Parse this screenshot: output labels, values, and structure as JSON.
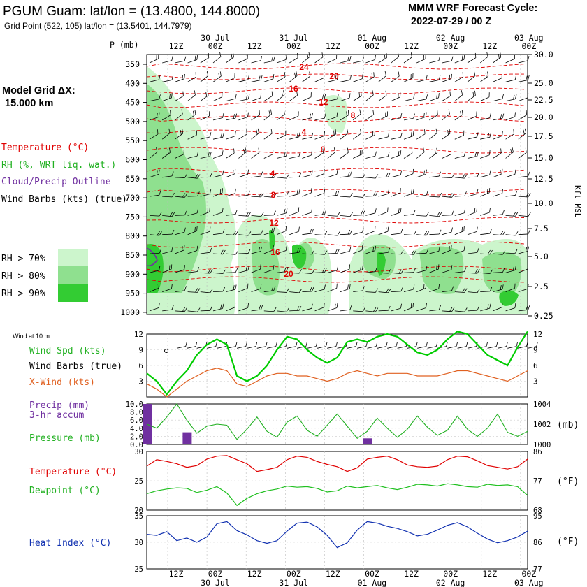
{
  "header": {
    "title": "PGUM Guam:  lat/lon = (13.4800, 144.8000)",
    "subtitle": "Grid Point (522, 105) lat/lon = (13.5401, 144.7979)",
    "forecast_label": "MMM WRF Forecast Cycle:",
    "forecast_cycle": "2022-07-29 / 00  Z"
  },
  "time_axis": {
    "days_top": [
      "30 Jul",
      "31 Jul",
      "01 Aug",
      "02 Aug",
      "03 Aug"
    ],
    "days_bottom": [
      "30 Jul",
      "31 Jul",
      "01 Aug",
      "02 Aug",
      "03 Aug"
    ],
    "ticks_top": [
      "12Z",
      "00Z",
      "12Z",
      "00Z",
      "12Z",
      "00Z",
      "12Z",
      "00Z",
      "12Z",
      "00Z"
    ],
    "ticks_bottom": [
      "12Z",
      "00Z",
      "12Z",
      "00Z",
      "12Z",
      "00Z",
      "12Z",
      "00Z",
      "12Z",
      "00Z"
    ]
  },
  "profile": {
    "p_label": "P (mb)",
    "right_label": "Kft MSL",
    "pressure_ticks": [
      "350",
      "400",
      "450",
      "500",
      "550",
      "600",
      "650",
      "700",
      "750",
      "800",
      "850",
      "900",
      "950",
      "1000"
    ],
    "kft_ticks": [
      "30.0",
      "25.0",
      "22.5",
      "20.0",
      "17.5",
      "15.0",
      "12.5",
      "10.0",
      "7.5",
      "5.0",
      "2.5",
      "0.25"
    ],
    "model_grid_label": "Model Grid ΔX:",
    "model_grid_value": "15.000 km",
    "legend_temperature": "Temperature (°C)",
    "legend_rh": "RH (%, WRT liq. wat.)",
    "legend_cloud": "Cloud/Precip Outline",
    "legend_wind": "Wind Barbs (kts) (true)",
    "rh_thresholds": [
      "RH > 70%",
      "RH > 80%",
      "RH > 90%"
    ],
    "temp_contour_labels": [
      "24",
      "20",
      "16",
      "12",
      "8",
      "4",
      "0",
      "4",
      "8",
      "12",
      "16",
      "20"
    ],
    "colors": {
      "temperature": "#e00000",
      "rh70": "#ccf5cc",
      "rh80": "#8fe08f",
      "rh90": "#33cc33",
      "cloud": "#7030a0"
    }
  },
  "panels": {
    "wind": {
      "corner_label": "Wind at 10 m",
      "label_speed": "Wind Spd (kts)",
      "label_barbs": "Wind Barbs (true)",
      "label_xwind": "X-Wind (kts)",
      "ticks": [
        "12",
        "9",
        "6",
        "3"
      ]
    },
    "precip": {
      "label_precip": "Precip (mm)",
      "label_accum": "3-hr accum",
      "label_pressure": "Pressure (mb)",
      "left_ticks": [
        "10.0",
        "8.0",
        "6.0",
        "4.0",
        "2.0",
        "0.0"
      ],
      "right_ticks": [
        "1004",
        "1002",
        "1000"
      ],
      "right_unit": "(mb)"
    },
    "temp": {
      "label_temp": "Temperature (°C)",
      "label_dew": "Dewpoint (°C)",
      "left_ticks": [
        "30",
        "25",
        "20"
      ],
      "right_ticks": [
        "86",
        "77",
        "68"
      ],
      "right_unit": "(°F)"
    },
    "heat": {
      "label_heat": "Heat Index (°C)",
      "left_ticks": [
        "35",
        "30",
        "25"
      ],
      "right_ticks": [
        "95",
        "86",
        "77"
      ],
      "right_unit": "(°F)"
    }
  },
  "chart_data": [
    {
      "type": "line",
      "title": "Wind at 10 m",
      "x": [
        "29/06Z",
        "29/09Z",
        "29/12Z",
        "29/15Z",
        "29/18Z",
        "29/21Z",
        "30/00Z",
        "30/03Z",
        "30/06Z",
        "30/09Z",
        "30/12Z",
        "30/15Z",
        "30/18Z",
        "30/21Z",
        "31/00Z",
        "31/03Z",
        "31/06Z",
        "31/09Z",
        "31/12Z",
        "31/15Z",
        "31/18Z",
        "31/21Z",
        "01/00Z",
        "01/03Z",
        "01/06Z",
        "01/09Z",
        "01/12Z",
        "01/15Z",
        "01/18Z",
        "01/21Z",
        "02/00Z",
        "02/03Z",
        "02/06Z",
        "02/09Z",
        "02/12Z",
        "02/15Z",
        "02/18Z",
        "02/21Z",
        "03/00Z"
      ],
      "series": [
        {
          "name": "Wind Spd (kts)",
          "color": "#00cc00",
          "values": [
            4.5,
            3.0,
            0.5,
            3.0,
            5.0,
            8.0,
            10.0,
            11.0,
            10.0,
            4.0,
            3.0,
            4.0,
            6.0,
            9.0,
            11.5,
            11.0,
            9.0,
            7.5,
            6.5,
            7.5,
            10.5,
            11.0,
            10.5,
            11.5,
            12.0,
            11.5,
            10.0,
            8.5,
            8.0,
            9.0,
            11.0,
            12.5,
            12.0,
            10.0,
            8.0,
            7.0,
            6.0,
            9.5,
            12.5
          ]
        },
        {
          "name": "X-Wind (kts)",
          "color": "#e06020",
          "values": [
            2.5,
            1.5,
            0.0,
            1.5,
            3.0,
            4.0,
            5.0,
            5.5,
            5.0,
            2.5,
            2.0,
            3.0,
            4.0,
            4.5,
            4.5,
            4.0,
            4.0,
            3.5,
            3.0,
            3.5,
            4.5,
            5.0,
            4.5,
            4.0,
            4.5,
            4.5,
            4.5,
            4.0,
            4.0,
            4.0,
            4.5,
            5.0,
            5.0,
            4.5,
            4.0,
            3.5,
            3.0,
            4.0,
            5.0
          ]
        }
      ],
      "ylim": [
        0,
        12
      ]
    },
    {
      "type": "bar",
      "title": "Precip (mm) 3-hr accum / Pressure (mb)",
      "x": [
        "29/06Z",
        "29/09Z",
        "29/12Z",
        "29/15Z",
        "29/18Z",
        "29/21Z",
        "30/00Z",
        "30/03Z",
        "30/06Z",
        "30/09Z",
        "30/12Z",
        "30/15Z",
        "30/18Z",
        "30/21Z",
        "31/00Z",
        "31/03Z",
        "31/06Z",
        "31/09Z",
        "31/12Z",
        "31/15Z",
        "31/18Z",
        "31/21Z",
        "01/00Z",
        "01/03Z",
        "01/06Z",
        "01/09Z",
        "01/12Z",
        "01/15Z",
        "01/18Z",
        "01/21Z",
        "02/00Z",
        "02/03Z",
        "02/06Z",
        "02/09Z",
        "02/12Z",
        "02/15Z",
        "02/18Z",
        "02/21Z",
        "03/00Z"
      ],
      "series": [
        {
          "name": "Precip (mm)",
          "color": "#7030a0",
          "values": [
            10.0,
            0,
            0,
            0,
            3.0,
            0,
            0,
            0,
            0,
            0,
            0,
            0,
            0,
            0,
            0,
            0,
            0,
            0,
            0,
            0,
            0,
            0,
            1.5,
            0,
            0,
            0,
            0,
            0,
            0,
            0,
            0,
            0,
            0,
            0,
            0,
            0,
            0,
            0,
            0
          ]
        },
        {
          "name": "Pressure (mb)",
          "color": "#20b020",
          "values": [
            1002.0,
            1001.6,
            1002.7,
            1004.0,
            1002.4,
            1001.1,
            1001.8,
            1002.0,
            1001.9,
            1000.5,
            1001.5,
            1002.7,
            1001.3,
            1000.7,
            1002.2,
            1002.8,
            1001.4,
            1000.8,
            1001.9,
            1003.0,
            1001.8,
            1000.6,
            1001.3,
            1002.6,
            1001.6,
            1000.7,
            1001.5,
            1002.8,
            1001.7,
            1000.9,
            1001.4,
            1002.8,
            1001.5,
            1000.8,
            1001.6,
            1003.0,
            1001.2,
            1000.8,
            1001.3
          ]
        }
      ],
      "ylim_left": [
        0,
        10
      ],
      "ylim_right": [
        1000,
        1004
      ]
    },
    {
      "type": "line",
      "title": "Temperature / Dewpoint (°C)",
      "x": [
        "29/06Z",
        "29/09Z",
        "29/12Z",
        "29/15Z",
        "29/18Z",
        "29/21Z",
        "30/00Z",
        "30/03Z",
        "30/06Z",
        "30/09Z",
        "30/12Z",
        "30/15Z",
        "30/18Z",
        "30/21Z",
        "31/00Z",
        "31/03Z",
        "31/06Z",
        "31/09Z",
        "31/12Z",
        "31/15Z",
        "31/18Z",
        "31/21Z",
        "01/00Z",
        "01/03Z",
        "01/06Z",
        "01/09Z",
        "01/12Z",
        "01/15Z",
        "01/18Z",
        "01/21Z",
        "02/00Z",
        "02/03Z",
        "02/06Z",
        "02/09Z",
        "02/12Z",
        "02/15Z",
        "02/18Z",
        "02/21Z",
        "03/00Z"
      ],
      "series": [
        {
          "name": "Temperature (°C)",
          "color": "#e00000",
          "values": [
            27.5,
            28.6,
            28.3,
            27.9,
            27.3,
            27.6,
            28.7,
            29.2,
            29.3,
            28.6,
            27.9,
            26.6,
            26.9,
            27.3,
            28.6,
            29.2,
            29.0,
            28.3,
            27.8,
            27.4,
            26.6,
            27.2,
            28.7,
            29.0,
            29.2,
            28.6,
            27.7,
            27.4,
            27.3,
            27.5,
            28.6,
            29.2,
            29.1,
            28.4,
            27.6,
            27.3,
            27.0,
            27.4,
            28.7
          ]
        },
        {
          "name": "Dewpoint (°C)",
          "color": "#20c020",
          "values": [
            22.8,
            23.3,
            23.6,
            23.8,
            23.7,
            23.0,
            23.4,
            24.0,
            22.9,
            20.8,
            22.0,
            22.8,
            23.3,
            23.6,
            24.1,
            23.9,
            24.0,
            23.7,
            23.1,
            23.3,
            24.1,
            23.8,
            24.0,
            24.2,
            23.8,
            23.5,
            23.9,
            24.4,
            24.3,
            24.1,
            24.5,
            24.3,
            24.0,
            23.9,
            24.4,
            24.2,
            24.3,
            24.0,
            22.5
          ]
        }
      ],
      "ylim": [
        20,
        30
      ]
    },
    {
      "type": "line",
      "title": "Heat Index (°C)",
      "x": [
        "29/06Z",
        "29/09Z",
        "29/12Z",
        "29/15Z",
        "29/18Z",
        "29/21Z",
        "30/00Z",
        "30/03Z",
        "30/06Z",
        "30/09Z",
        "30/12Z",
        "30/15Z",
        "30/18Z",
        "30/21Z",
        "31/00Z",
        "31/03Z",
        "31/06Z",
        "31/09Z",
        "31/12Z",
        "31/15Z",
        "31/18Z",
        "31/21Z",
        "01/00Z",
        "01/03Z",
        "01/06Z",
        "01/09Z",
        "01/12Z",
        "01/15Z",
        "01/18Z",
        "01/21Z",
        "02/00Z",
        "02/03Z",
        "02/06Z",
        "02/09Z",
        "02/12Z",
        "02/15Z",
        "02/18Z",
        "02/21Z",
        "03/00Z"
      ],
      "series": [
        {
          "name": "Heat Index (°C)",
          "color": "#1030b0",
          "values": [
            31.5,
            31.3,
            32.0,
            30.3,
            30.8,
            30.0,
            31.0,
            33.5,
            33.9,
            32.2,
            31.4,
            30.3,
            29.8,
            30.3,
            32.1,
            33.6,
            33.8,
            32.9,
            31.3,
            29.0,
            29.9,
            32.3,
            33.9,
            33.6,
            33.0,
            32.6,
            32.0,
            31.2,
            31.5,
            32.3,
            33.2,
            33.7,
            32.9,
            31.7,
            30.6,
            29.9,
            30.3,
            31.0,
            32.1
          ]
        }
      ],
      "ylim": [
        25,
        35
      ]
    }
  ]
}
